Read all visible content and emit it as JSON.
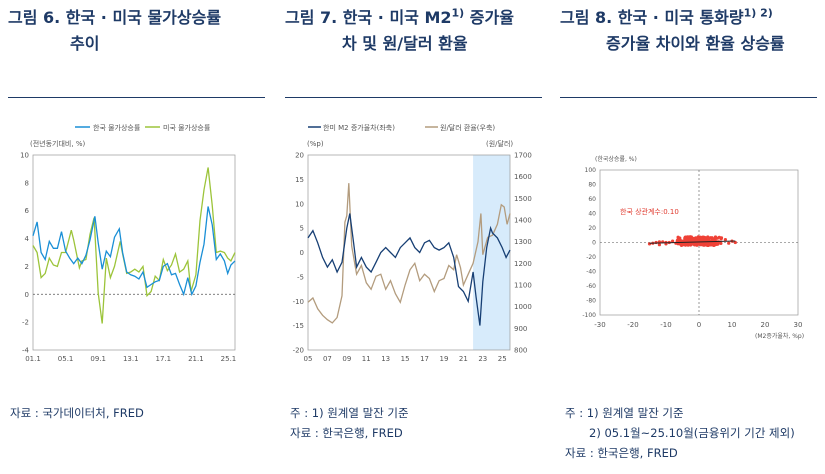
{
  "panels": [
    {
      "title_line1": "그림 6. 한국 · 미국 물가상승률",
      "title_line2": "추이",
      "source": "자료 : 국가데이터처, FRED"
    },
    {
      "title_line1": "그림 7. 한국 · 미국 M2",
      "title_sup": "1)",
      "title_line1_end": " 증가율",
      "title_line2": "차 및 원/달러 환율",
      "note1": "주 :  1) 원계열 말잔 기준",
      "source": "자료 : 한국은행, FRED"
    },
    {
      "title_line1": "그림 8. 한국 · 미국 통화량",
      "title_sup": "1) 2)",
      "title_line2": "증가율 차이와 환율 상승률",
      "note1": "주 :  1) 원계열 말잔 기준",
      "note2": "2) 05.1월~25.10월(금융위기 기간 제외)",
      "source": "자료 : 한국은행, FRED"
    }
  ],
  "chart_data": [
    {
      "type": "line",
      "ylabel": "(전년동기대비, %)",
      "ylim": [
        -4,
        10
      ],
      "yticks": [
        "10",
        "8",
        "6",
        "4",
        "2",
        "0",
        "-2",
        "-4"
      ],
      "xticks": [
        "01.1",
        "05.1",
        "09.1",
        "13.1",
        "17.1",
        "21.1",
        "25.1"
      ],
      "x_range": [
        2001,
        2025.8
      ],
      "colors": {
        "korea": "#1a8fd6",
        "us": "#9cc43a"
      },
      "series": [
        {
          "name": "한국 물가상승률",
          "points": [
            [
              2001,
              4.2
            ],
            [
              2001.5,
              5.2
            ],
            [
              2002,
              3
            ],
            [
              2002.5,
              2.5
            ],
            [
              2003,
              3.8
            ],
            [
              2003.5,
              3.3
            ],
            [
              2004,
              3.3
            ],
            [
              2004.5,
              4.5
            ],
            [
              2005,
              3.1
            ],
            [
              2005.5,
              2.6
            ],
            [
              2006,
              2.2
            ],
            [
              2006.5,
              2.6
            ],
            [
              2007,
              2.2
            ],
            [
              2007.5,
              2.8
            ],
            [
              2008,
              3.9
            ],
            [
              2008.6,
              5.6
            ],
            [
              2009,
              3.7
            ],
            [
              2009.5,
              1.8
            ],
            [
              2010,
              3.1
            ],
            [
              2010.5,
              2.7
            ],
            [
              2011,
              4.1
            ],
            [
              2011.6,
              4.7
            ],
            [
              2012,
              3
            ],
            [
              2012.5,
              1.6
            ],
            [
              2013,
              1.4
            ],
            [
              2013.5,
              1.3
            ],
            [
              2014,
              1.1
            ],
            [
              2014.5,
              1.6
            ],
            [
              2015,
              0.5
            ],
            [
              2015.5,
              0.7
            ],
            [
              2016,
              0.9
            ],
            [
              2016.5,
              1
            ],
            [
              2017,
              2
            ],
            [
              2017.5,
              2.2
            ],
            [
              2018,
              1.4
            ],
            [
              2018.5,
              1.5
            ],
            [
              2019,
              0.7
            ],
            [
              2019.5,
              0
            ],
            [
              2020,
              1.2
            ],
            [
              2020.5,
              0
            ],
            [
              2021,
              0.6
            ],
            [
              2021.5,
              2.3
            ],
            [
              2022,
              3.6
            ],
            [
              2022.5,
              6.3
            ],
            [
              2023,
              5
            ],
            [
              2023.5,
              2.5
            ],
            [
              2024,
              2.9
            ],
            [
              2024.5,
              2.4
            ],
            [
              2024.9,
              1.5
            ],
            [
              2025.3,
              2.1
            ],
            [
              2025.8,
              2.4
            ]
          ]
        },
        {
          "name": "미국 물가상승률",
          "points": [
            [
              2001,
              3.5
            ],
            [
              2001.5,
              3
            ],
            [
              2002,
              1.2
            ],
            [
              2002.5,
              1.5
            ],
            [
              2003,
              2.6
            ],
            [
              2003.5,
              2.1
            ],
            [
              2004,
              2
            ],
            [
              2004.5,
              3
            ],
            [
              2005,
              3
            ],
            [
              2005.7,
              4.6
            ],
            [
              2006,
              3.9
            ],
            [
              2006.7,
              1.9
            ],
            [
              2007,
              2.4
            ],
            [
              2007.5,
              2.5
            ],
            [
              2008,
              4.3
            ],
            [
              2008.5,
              5.5
            ],
            [
              2009,
              0.1
            ],
            [
              2009.5,
              -2.1
            ],
            [
              2010,
              2.6
            ],
            [
              2010.5,
              1.2
            ],
            [
              2011,
              2
            ],
            [
              2011.7,
              3.8
            ],
            [
              2012,
              2.9
            ],
            [
              2012.5,
              1.5
            ],
            [
              2013,
              1.6
            ],
            [
              2013.5,
              1.8
            ],
            [
              2014,
              1.6
            ],
            [
              2014.5,
              2
            ],
            [
              2015,
              -0.1
            ],
            [
              2015.5,
              0.2
            ],
            [
              2016,
              1.3
            ],
            [
              2016.5,
              1
            ],
            [
              2017,
              2.5
            ],
            [
              2017.5,
              1.7
            ],
            [
              2018,
              2.1
            ],
            [
              2018.5,
              2.9
            ],
            [
              2019,
              1.6
            ],
            [
              2019.5,
              1.8
            ],
            [
              2020,
              2.4
            ],
            [
              2020.4,
              0.2
            ],
            [
              2021,
              1.4
            ],
            [
              2021.5,
              5.3
            ],
            [
              2022,
              7.5
            ],
            [
              2022.5,
              9.1
            ],
            [
              2023,
              6.4
            ],
            [
              2023.5,
              3
            ],
            [
              2024,
              3.1
            ],
            [
              2024.5,
              3
            ],
            [
              2024.9,
              2.6
            ],
            [
              2025.3,
              2.4
            ],
            [
              2025.8,
              3
            ]
          ]
        }
      ]
    },
    {
      "type": "line",
      "ylabel_left": "(%p)",
      "ylabel_right": "(원/달러)",
      "ylim_left": [
        -20,
        20
      ],
      "ylim_right": [
        800,
        1700
      ],
      "yticks_left": [
        "20",
        "15",
        "10",
        "5",
        "0",
        "-5",
        "-10",
        "-15",
        "-20"
      ],
      "yticks_right": [
        "1700",
        "1600",
        "1500",
        "1400",
        "1300",
        "1200",
        "1100",
        "1000",
        "900",
        "800"
      ],
      "xticks": [
        "05",
        "07",
        "09",
        "11",
        "13",
        "15",
        "17",
        "19",
        "21",
        "23",
        "25"
      ],
      "x_range": [
        2005,
        2025.8
      ],
      "shaded_from": 2022,
      "colors": {
        "m2": "#173f74",
        "fx": "#b39c7e",
        "shade": "#d7ebfb"
      },
      "series": [
        {
          "name": "한미 M2 증가율차(좌축)",
          "axis": "left",
          "points": [
            [
              2005,
              3
            ],
            [
              2005.5,
              4.5
            ],
            [
              2006,
              2
            ],
            [
              2006.5,
              -1
            ],
            [
              2007,
              -3
            ],
            [
              2007.5,
              -1.5
            ],
            [
              2008,
              -4
            ],
            [
              2008.5,
              -2
            ],
            [
              2009,
              5
            ],
            [
              2009.3,
              8
            ],
            [
              2009.7,
              2
            ],
            [
              2010,
              -3
            ],
            [
              2010.5,
              -1
            ],
            [
              2011,
              -3
            ],
            [
              2011.5,
              -4
            ],
            [
              2012,
              -2
            ],
            [
              2012.5,
              0
            ],
            [
              2013,
              1
            ],
            [
              2013.5,
              0
            ],
            [
              2014,
              -1
            ],
            [
              2014.5,
              1
            ],
            [
              2015,
              2
            ],
            [
              2015.5,
              3
            ],
            [
              2016,
              1
            ],
            [
              2016.5,
              0
            ],
            [
              2017,
              2
            ],
            [
              2017.5,
              2.5
            ],
            [
              2018,
              1
            ],
            [
              2018.5,
              0.5
            ],
            [
              2019,
              1
            ],
            [
              2019.5,
              2
            ],
            [
              2020,
              -1
            ],
            [
              2020.5,
              -7
            ],
            [
              2021,
              -8
            ],
            [
              2021.5,
              -10
            ],
            [
              2022,
              -4
            ],
            [
              2022.3,
              -9
            ],
            [
              2022.7,
              -15
            ],
            [
              2023,
              -6
            ],
            [
              2023.4,
              1
            ],
            [
              2023.8,
              5
            ],
            [
              2024,
              4
            ],
            [
              2024.5,
              3
            ],
            [
              2025,
              1
            ],
            [
              2025.4,
              -1
            ],
            [
              2025.8,
              0.5
            ]
          ]
        },
        {
          "name": "원/달러 환율(우축)",
          "axis": "right",
          "points": [
            [
              2005,
              1020
            ],
            [
              2005.5,
              1040
            ],
            [
              2006,
              990
            ],
            [
              2006.5,
              960
            ],
            [
              2007,
              940
            ],
            [
              2007.5,
              925
            ],
            [
              2008,
              950
            ],
            [
              2008.5,
              1050
            ],
            [
              2008.8,
              1390
            ],
            [
              2009,
              1420
            ],
            [
              2009.2,
              1570
            ],
            [
              2009.5,
              1280
            ],
            [
              2010,
              1150
            ],
            [
              2010.5,
              1190
            ],
            [
              2011,
              1110
            ],
            [
              2011.5,
              1080
            ],
            [
              2012,
              1140
            ],
            [
              2012.5,
              1150
            ],
            [
              2013,
              1080
            ],
            [
              2013.5,
              1120
            ],
            [
              2014,
              1060
            ],
            [
              2014.5,
              1020
            ],
            [
              2015,
              1100
            ],
            [
              2015.5,
              1170
            ],
            [
              2016,
              1200
            ],
            [
              2016.5,
              1120
            ],
            [
              2017,
              1150
            ],
            [
              2017.5,
              1130
            ],
            [
              2018,
              1070
            ],
            [
              2018.5,
              1120
            ],
            [
              2019,
              1130
            ],
            [
              2019.5,
              1190
            ],
            [
              2020,
              1170
            ],
            [
              2020.3,
              1240
            ],
            [
              2020.7,
              1180
            ],
            [
              2021,
              1100
            ],
            [
              2021.5,
              1150
            ],
            [
              2022,
              1200
            ],
            [
              2022.5,
              1300
            ],
            [
              2022.8,
              1430
            ],
            [
              2023,
              1240
            ],
            [
              2023.5,
              1320
            ],
            [
              2024,
              1330
            ],
            [
              2024.5,
              1380
            ],
            [
              2024.9,
              1470
            ],
            [
              2025.2,
              1460
            ],
            [
              2025.5,
              1380
            ],
            [
              2025.8,
              1430
            ]
          ]
        }
      ]
    },
    {
      "type": "scatter",
      "ylabel": "(한국상승률, %)",
      "xlabel": "(M2증가율차, %p)",
      "xlim": [
        -30,
        30
      ],
      "ylim": [
        -100,
        100
      ],
      "xticks": [
        "-30",
        "-20",
        "-10",
        "0",
        "10",
        "20",
        "30"
      ],
      "yticks": [
        "100",
        "80",
        "60",
        "40",
        "20",
        "0",
        "-20",
        "-40",
        "-60",
        "-80",
        "-100"
      ],
      "annotation": "한국 상관계수:0.10",
      "colors": {
        "points": "#ef4136",
        "trend": "#222222",
        "annotation": "#e03a2e"
      },
      "trend": [
        [
          -15,
          -1
        ],
        [
          11,
          2
        ]
      ],
      "cluster": {
        "center": [
          0,
          2
        ],
        "x_spread": 5,
        "y_spread": 3,
        "count": 220
      },
      "tail": [
        [
          -15,
          -2
        ],
        [
          -14,
          -1
        ],
        [
          -13,
          0
        ],
        [
          -12,
          -3
        ],
        [
          -11,
          1
        ],
        [
          -10,
          -2
        ],
        [
          -9,
          0
        ],
        [
          -8,
          2
        ],
        [
          -7,
          -1
        ],
        [
          -6,
          1
        ],
        [
          8,
          4
        ],
        [
          9,
          -1
        ],
        [
          10,
          2
        ],
        [
          11,
          0
        ],
        [
          -12,
          1
        ],
        [
          -10,
          0
        ]
      ]
    }
  ]
}
